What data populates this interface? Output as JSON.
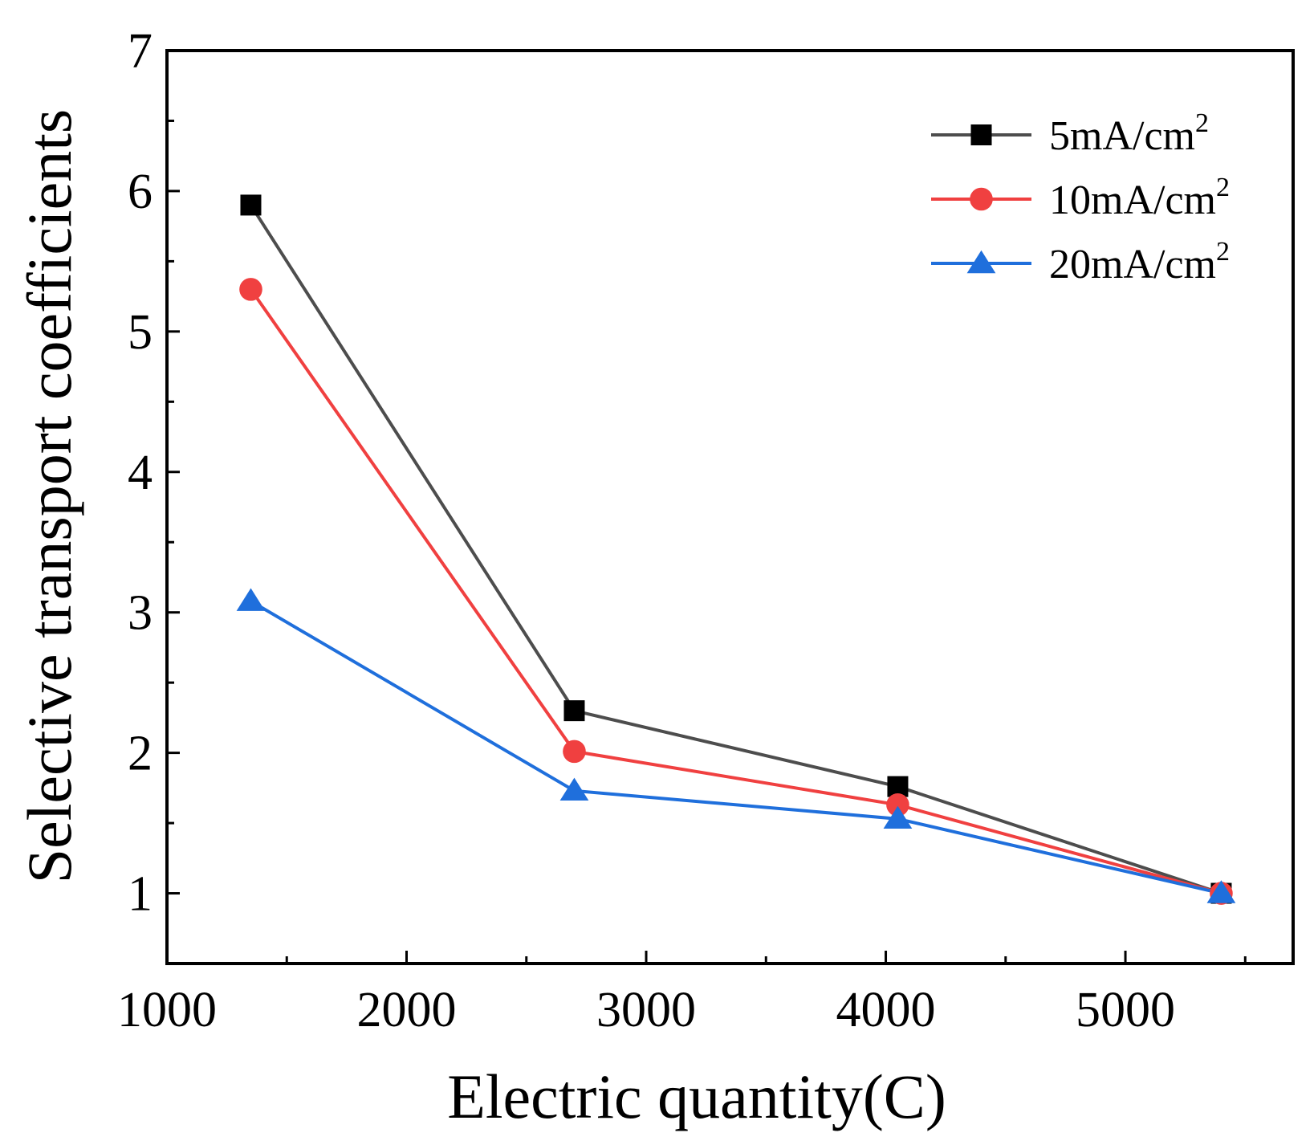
{
  "chart_data": {
    "type": "line",
    "xlabel": "Electric quantity(C)",
    "ylabel": "Selective transport coefficients",
    "xlim": [
      1000,
      5700
    ],
    "ylim": [
      0.5,
      7
    ],
    "x_ticks": [
      1000,
      2000,
      3000,
      4000,
      5000
    ],
    "x_tick_labels": [
      "1000",
      "2000",
      "3000",
      "4000",
      "5000"
    ],
    "y_ticks": [
      1,
      2,
      3,
      4,
      5,
      6,
      7
    ],
    "y_tick_labels": [
      "1",
      "2",
      "3",
      "4",
      "5",
      "6",
      "7"
    ],
    "legend_position": "top-right",
    "series": [
      {
        "name": "5mA/cm",
        "superscript": "2",
        "color": "#4d4d4d",
        "marker_color": "#000000",
        "marker": "square",
        "x": [
          1350,
          2700,
          4050,
          5400
        ],
        "values": [
          5.9,
          2.3,
          1.76,
          1.0
        ]
      },
      {
        "name": "10mA/cm",
        "superscript": "2",
        "color": "#f04040",
        "marker_color": "#f04040",
        "marker": "circle",
        "x": [
          1350,
          2700,
          4050,
          5400
        ],
        "values": [
          5.3,
          2.01,
          1.63,
          1.0
        ]
      },
      {
        "name": "20mA/cm",
        "superscript": "2",
        "color": "#1f6fdc",
        "marker_color": "#1f6fdc",
        "marker": "triangle",
        "x": [
          1350,
          2700,
          4050,
          5400
        ],
        "values": [
          3.08,
          1.73,
          1.53,
          1.0
        ]
      }
    ]
  }
}
